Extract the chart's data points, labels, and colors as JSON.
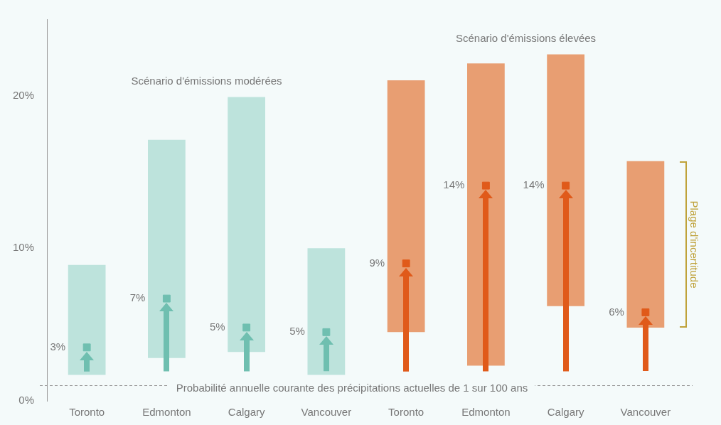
{
  "chart_data": {
    "type": "bar",
    "categories": [
      "Toronto",
      "Edmonton",
      "Calgary",
      "Vancouver",
      "Toronto",
      "Edmonton",
      "Calgary",
      "Vancouver"
    ],
    "series": [
      {
        "name": "Scénario d'émissions modérées",
        "color": "#bde3dc",
        "base": [
          1.7,
          2.8,
          3.2,
          1.7,
          null,
          null,
          null,
          null
        ],
        "values": [
          7.2,
          14.3,
          16.7,
          8.3,
          null,
          null,
          null,
          null
        ]
      },
      {
        "name": "Scénario d'émissions élevées",
        "color": "#e89e72",
        "base": [
          null,
          null,
          null,
          null,
          4.5,
          2.3,
          6.2,
          4.8
        ],
        "values": [
          null,
          null,
          null,
          null,
          16.5,
          19.8,
          16.5,
          10.9
        ]
      },
      {
        "type": "scatter",
        "color": "#6fbfb0",
        "values": [
          3.5,
          6.7,
          4.8,
          4.5,
          null,
          null,
          null,
          null
        ],
        "value_labels": [
          "3%",
          "7%",
          "5%",
          "5%",
          null,
          null,
          null,
          null
        ]
      },
      {
        "type": "scatter",
        "color": "#e05a1a",
        "values": [
          null,
          null,
          null,
          null,
          9.0,
          14.1,
          14.1,
          5.8
        ],
        "value_labels": [
          null,
          null,
          null,
          null,
          "9%",
          "14%",
          "14%",
          "6%"
        ]
      }
    ],
    "ylim": [
      0,
      25
    ],
    "yticks": [
      {
        "value": 0,
        "label": "0%"
      },
      {
        "value": 10,
        "label": "10%"
      },
      {
        "value": 20,
        "label": "20%"
      }
    ],
    "grid": false,
    "legend": false,
    "ref_lines": [
      {
        "axis": "y",
        "value": 1,
        "label": "Probabilité annuelle courante des précipitations actuelles de 1 sur 100 ans",
        "color": "#9a9a9a",
        "line_style": "dashed"
      }
    ],
    "annotations": [
      "Plage d'incertitude"
    ]
  }
}
